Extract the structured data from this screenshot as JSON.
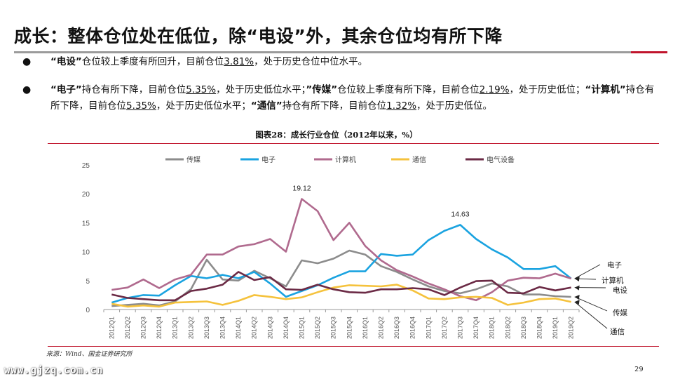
{
  "page": {
    "title": "成长：整体仓位处在低位，除“电设”外，其余仓位均有所下降",
    "page_number": "29",
    "footer_url": "www.gjzq.com.cn"
  },
  "bullets": [
    {
      "parts": [
        {
          "text": "“电设”",
          "bold": true
        },
        {
          "text": "仓位较上季度有所回升，目前仓位"
        },
        {
          "text": "3.81%",
          "u": true
        },
        {
          "text": "，处于历史仓位中位水平。"
        }
      ]
    },
    {
      "parts": [
        {
          "text": "“电子”",
          "bold": true
        },
        {
          "text": "持仓有所下降，目前仓位"
        },
        {
          "text": "5.35%",
          "u": true
        },
        {
          "text": "，处于历史低位水平；"
        },
        {
          "text": "”传媒”",
          "bold": true
        },
        {
          "text": "仓位较上季度有所下降，目前仓位"
        },
        {
          "text": "2.19%",
          "u": true
        },
        {
          "text": "，处于历史低位；"
        },
        {
          "text": "“计算机”",
          "bold": true
        },
        {
          "text": "持仓有所下降，目前仓位"
        },
        {
          "text": "5.35%",
          "u": true
        },
        {
          "text": "，处于历史低位水平；"
        },
        {
          "text": "“通信”",
          "bold": true
        },
        {
          "text": "持仓有所下降，目前仓位"
        },
        {
          "text": "1.32%",
          "u": true
        },
        {
          "text": "，处于历史低位。"
        }
      ]
    }
  ],
  "chart_caption": "图表28：成长行业仓位（2012年以来，%）",
  "source": "来源：Wind、国金证券研究所",
  "chart_data": {
    "type": "line",
    "title": "图表28：成长行业仓位（2012年以来，%）",
    "ylim": [
      0,
      25
    ],
    "yticks": [
      "0",
      "5",
      "10",
      "15",
      "20",
      "25"
    ],
    "grid": false,
    "legend_position": "top",
    "categories": [
      "2012Q1",
      "2012Q2",
      "2012Q3",
      "2012Q4",
      "2013Q1",
      "2013Q2",
      "2013Q3",
      "2013Q4",
      "2014Q1",
      "2014Q2",
      "2014Q3",
      "2014Q4",
      "2015Q1",
      "2015Q2",
      "2015Q3",
      "2015Q4",
      "2016Q1",
      "2016Q2",
      "2016Q3",
      "2016Q4",
      "2017Q1",
      "2017Q2",
      "2017Q3",
      "2017Q4",
      "2018Q1",
      "2018Q2",
      "2018Q3",
      "2018Q4",
      "2019Q1",
      "2019Q2"
    ],
    "series": [
      {
        "name": "传媒",
        "color": "#8c8c8c",
        "values": [
          0.6,
          0.8,
          1.0,
          0.7,
          1.4,
          3.5,
          8.6,
          5.2,
          5.0,
          6.7,
          5.4,
          4.0,
          8.5,
          8.0,
          8.8,
          10.2,
          9.5,
          7.5,
          6.5,
          5.2,
          4.0,
          3.2,
          2.8,
          3.5,
          4.5,
          4.0,
          2.6,
          2.6,
          2.3,
          2.19
        ]
      },
      {
        "name": "电子",
        "color": "#1aa3e0",
        "values": [
          1.2,
          2.0,
          2.5,
          2.4,
          4.2,
          5.8,
          5.4,
          6.0,
          5.4,
          6.5,
          4.5,
          2.2,
          3.2,
          4.2,
          5.5,
          6.6,
          6.6,
          9.6,
          9.3,
          9.5,
          12.0,
          13.6,
          14.63,
          12.2,
          10.4,
          9.0,
          7.0,
          7.0,
          7.5,
          5.35
        ]
      },
      {
        "name": "计算机",
        "color": "#b06a8e",
        "values": [
          3.4,
          3.8,
          5.2,
          3.7,
          5.2,
          6.0,
          9.5,
          9.5,
          10.9,
          11.3,
          12.2,
          10.0,
          19.12,
          17.0,
          12.0,
          15.0,
          11.0,
          8.5,
          6.8,
          5.7,
          4.5,
          3.5,
          2.3,
          1.6,
          3.0,
          5.0,
          5.5,
          5.4,
          6.2,
          5.35
        ]
      },
      {
        "name": "通信",
        "color": "#f5c23c",
        "values": [
          1.0,
          0.5,
          0.7,
          0.5,
          1.2,
          1.3,
          1.4,
          0.8,
          1.5,
          2.5,
          2.2,
          1.8,
          2.1,
          3.0,
          3.8,
          4.2,
          4.1,
          4.0,
          4.3,
          3.3,
          1.9,
          1.8,
          2.1,
          2.2,
          2.0,
          0.8,
          1.2,
          1.8,
          1.9,
          1.32
        ]
      },
      {
        "name": "电气设备",
        "color": "#6b2a45",
        "values": [
          2.6,
          2.0,
          1.8,
          1.6,
          1.6,
          3.2,
          3.6,
          4.3,
          6.5,
          5.1,
          5.6,
          3.5,
          3.4,
          4.3,
          3.5,
          3.0,
          2.9,
          3.5,
          3.5,
          3.7,
          3.5,
          2.5,
          3.8,
          4.9,
          5.0,
          2.9,
          2.8,
          3.9,
          3.3,
          3.81
        ]
      }
    ],
    "annotations": [
      {
        "text": "19.12",
        "series": "计算机",
        "index": 12
      },
      {
        "text": "14.63",
        "series": "电子",
        "index": 22
      }
    ],
    "end_labels": [
      {
        "text": "电子",
        "series": "电子"
      },
      {
        "text": "计算机",
        "series": "计算机"
      },
      {
        "text": "电设",
        "series": "电气设备"
      },
      {
        "text": "传媒",
        "series": "传媒"
      },
      {
        "text": "通信",
        "series": "通信"
      }
    ]
  }
}
